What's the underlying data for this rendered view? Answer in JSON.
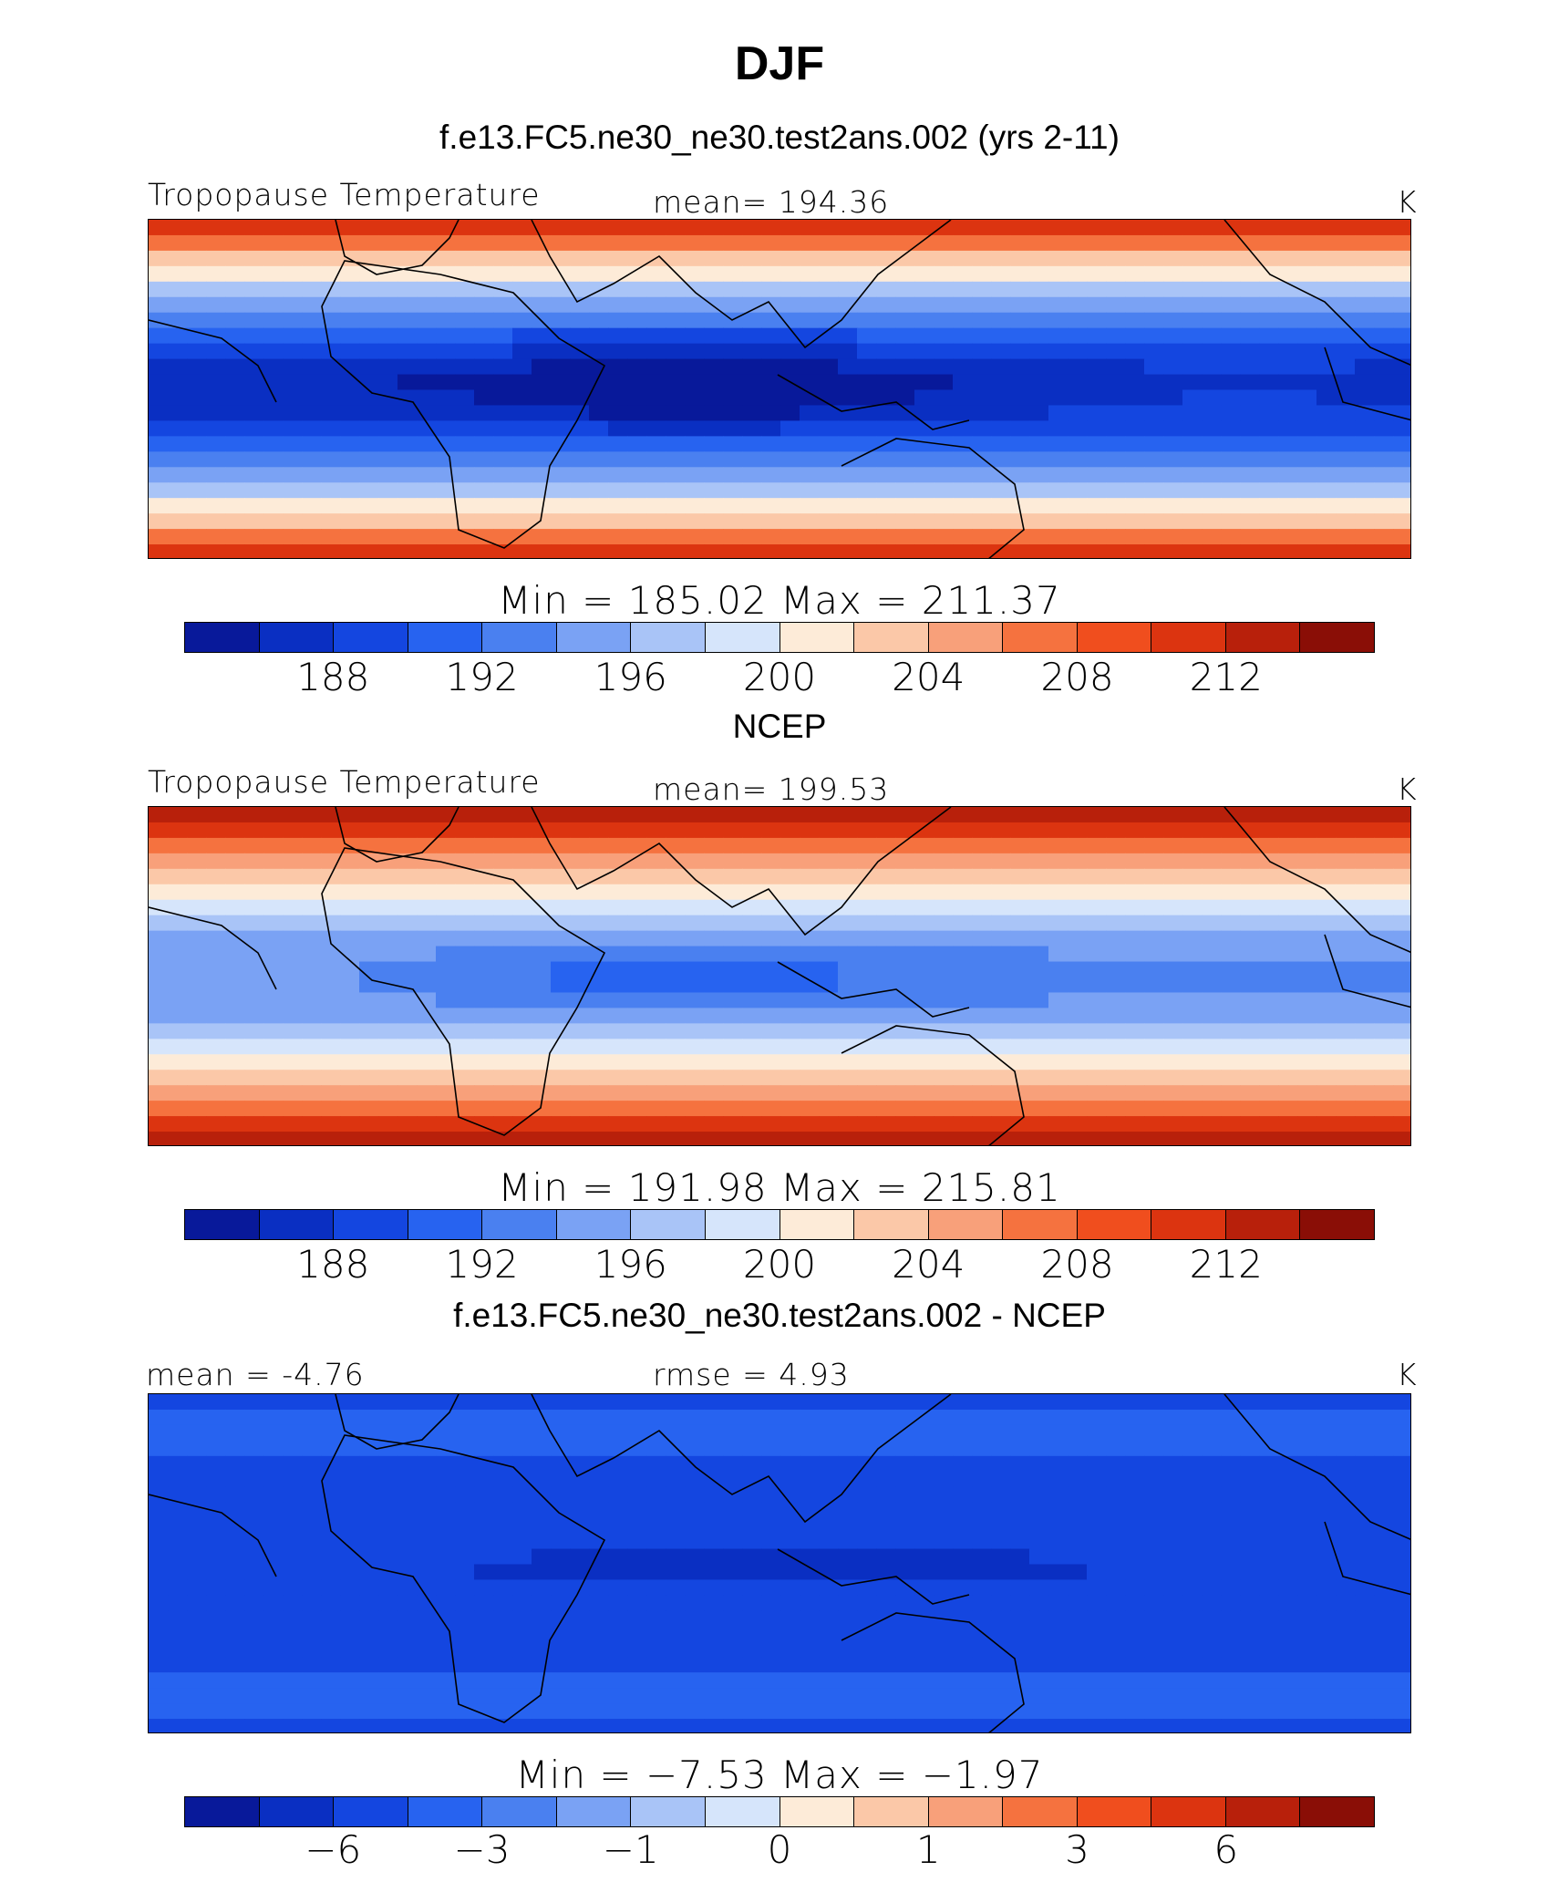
{
  "title": "DJF",
  "colors": [
    "#08199a",
    "#0a2fc2",
    "#1446e0",
    "#2763f0",
    "#4a80f0",
    "#7aa2f4",
    "#a9c4f7",
    "#d6e5fb",
    "#fdebd8",
    "#fbc8a8",
    "#f8a07a",
    "#f5723f",
    "#f04e1e",
    "#dc3410",
    "#b8200b",
    "#8a0e06"
  ],
  "chart_data": [
    {
      "type": "heatmap",
      "panel_title": "f.e13.FC5.ne30_ne30.test2ans.002 (yrs 2-11)",
      "left_label": "Tropopause  Temperature",
      "center_label": "mean=  194.36",
      "units": "K",
      "min": 185.02,
      "max": 211.37,
      "mean": 194.36,
      "minmax_text": "Min  =  185.02  Max  =  211.37",
      "contour_levels": [
        186,
        188,
        190,
        192,
        194,
        196,
        198,
        200,
        202,
        204,
        206,
        208,
        210,
        212,
        214
      ],
      "tick_labels": [
        "188",
        "192",
        "196",
        "200",
        "204",
        "208",
        "212"
      ]
    },
    {
      "type": "heatmap",
      "panel_title": "NCEP",
      "left_label": "Tropopause  Temperature",
      "center_label": "mean=  199.53",
      "units": "K",
      "min": 191.98,
      "max": 215.81,
      "mean": 199.53,
      "minmax_text": "Min  =  191.98  Max  =  215.81",
      "contour_levels": [
        186,
        188,
        190,
        192,
        194,
        196,
        198,
        200,
        202,
        204,
        206,
        208,
        210,
        212,
        214
      ],
      "tick_labels": [
        "188",
        "192",
        "196",
        "200",
        "204",
        "208",
        "212"
      ]
    },
    {
      "type": "heatmap",
      "panel_title": "f.e13.FC5.ne30_ne30.test2ans.002 - NCEP",
      "left_label": "mean  =   -4.76",
      "center_label": "rmse  =     4.93",
      "units": "K",
      "min": -7.53,
      "max": -1.97,
      "mean": -4.76,
      "rmse": 4.93,
      "minmax_text": "Min  =   −7.53  Max  =   −1.97",
      "contour_levels": [
        -8,
        -6,
        -4,
        -3,
        -2,
        -1,
        -0.5,
        0,
        0.5,
        1,
        2,
        3,
        4,
        6,
        8
      ],
      "tick_labels": [
        "−6",
        "−3",
        "−1",
        "0",
        "1",
        "3",
        "6"
      ]
    }
  ]
}
